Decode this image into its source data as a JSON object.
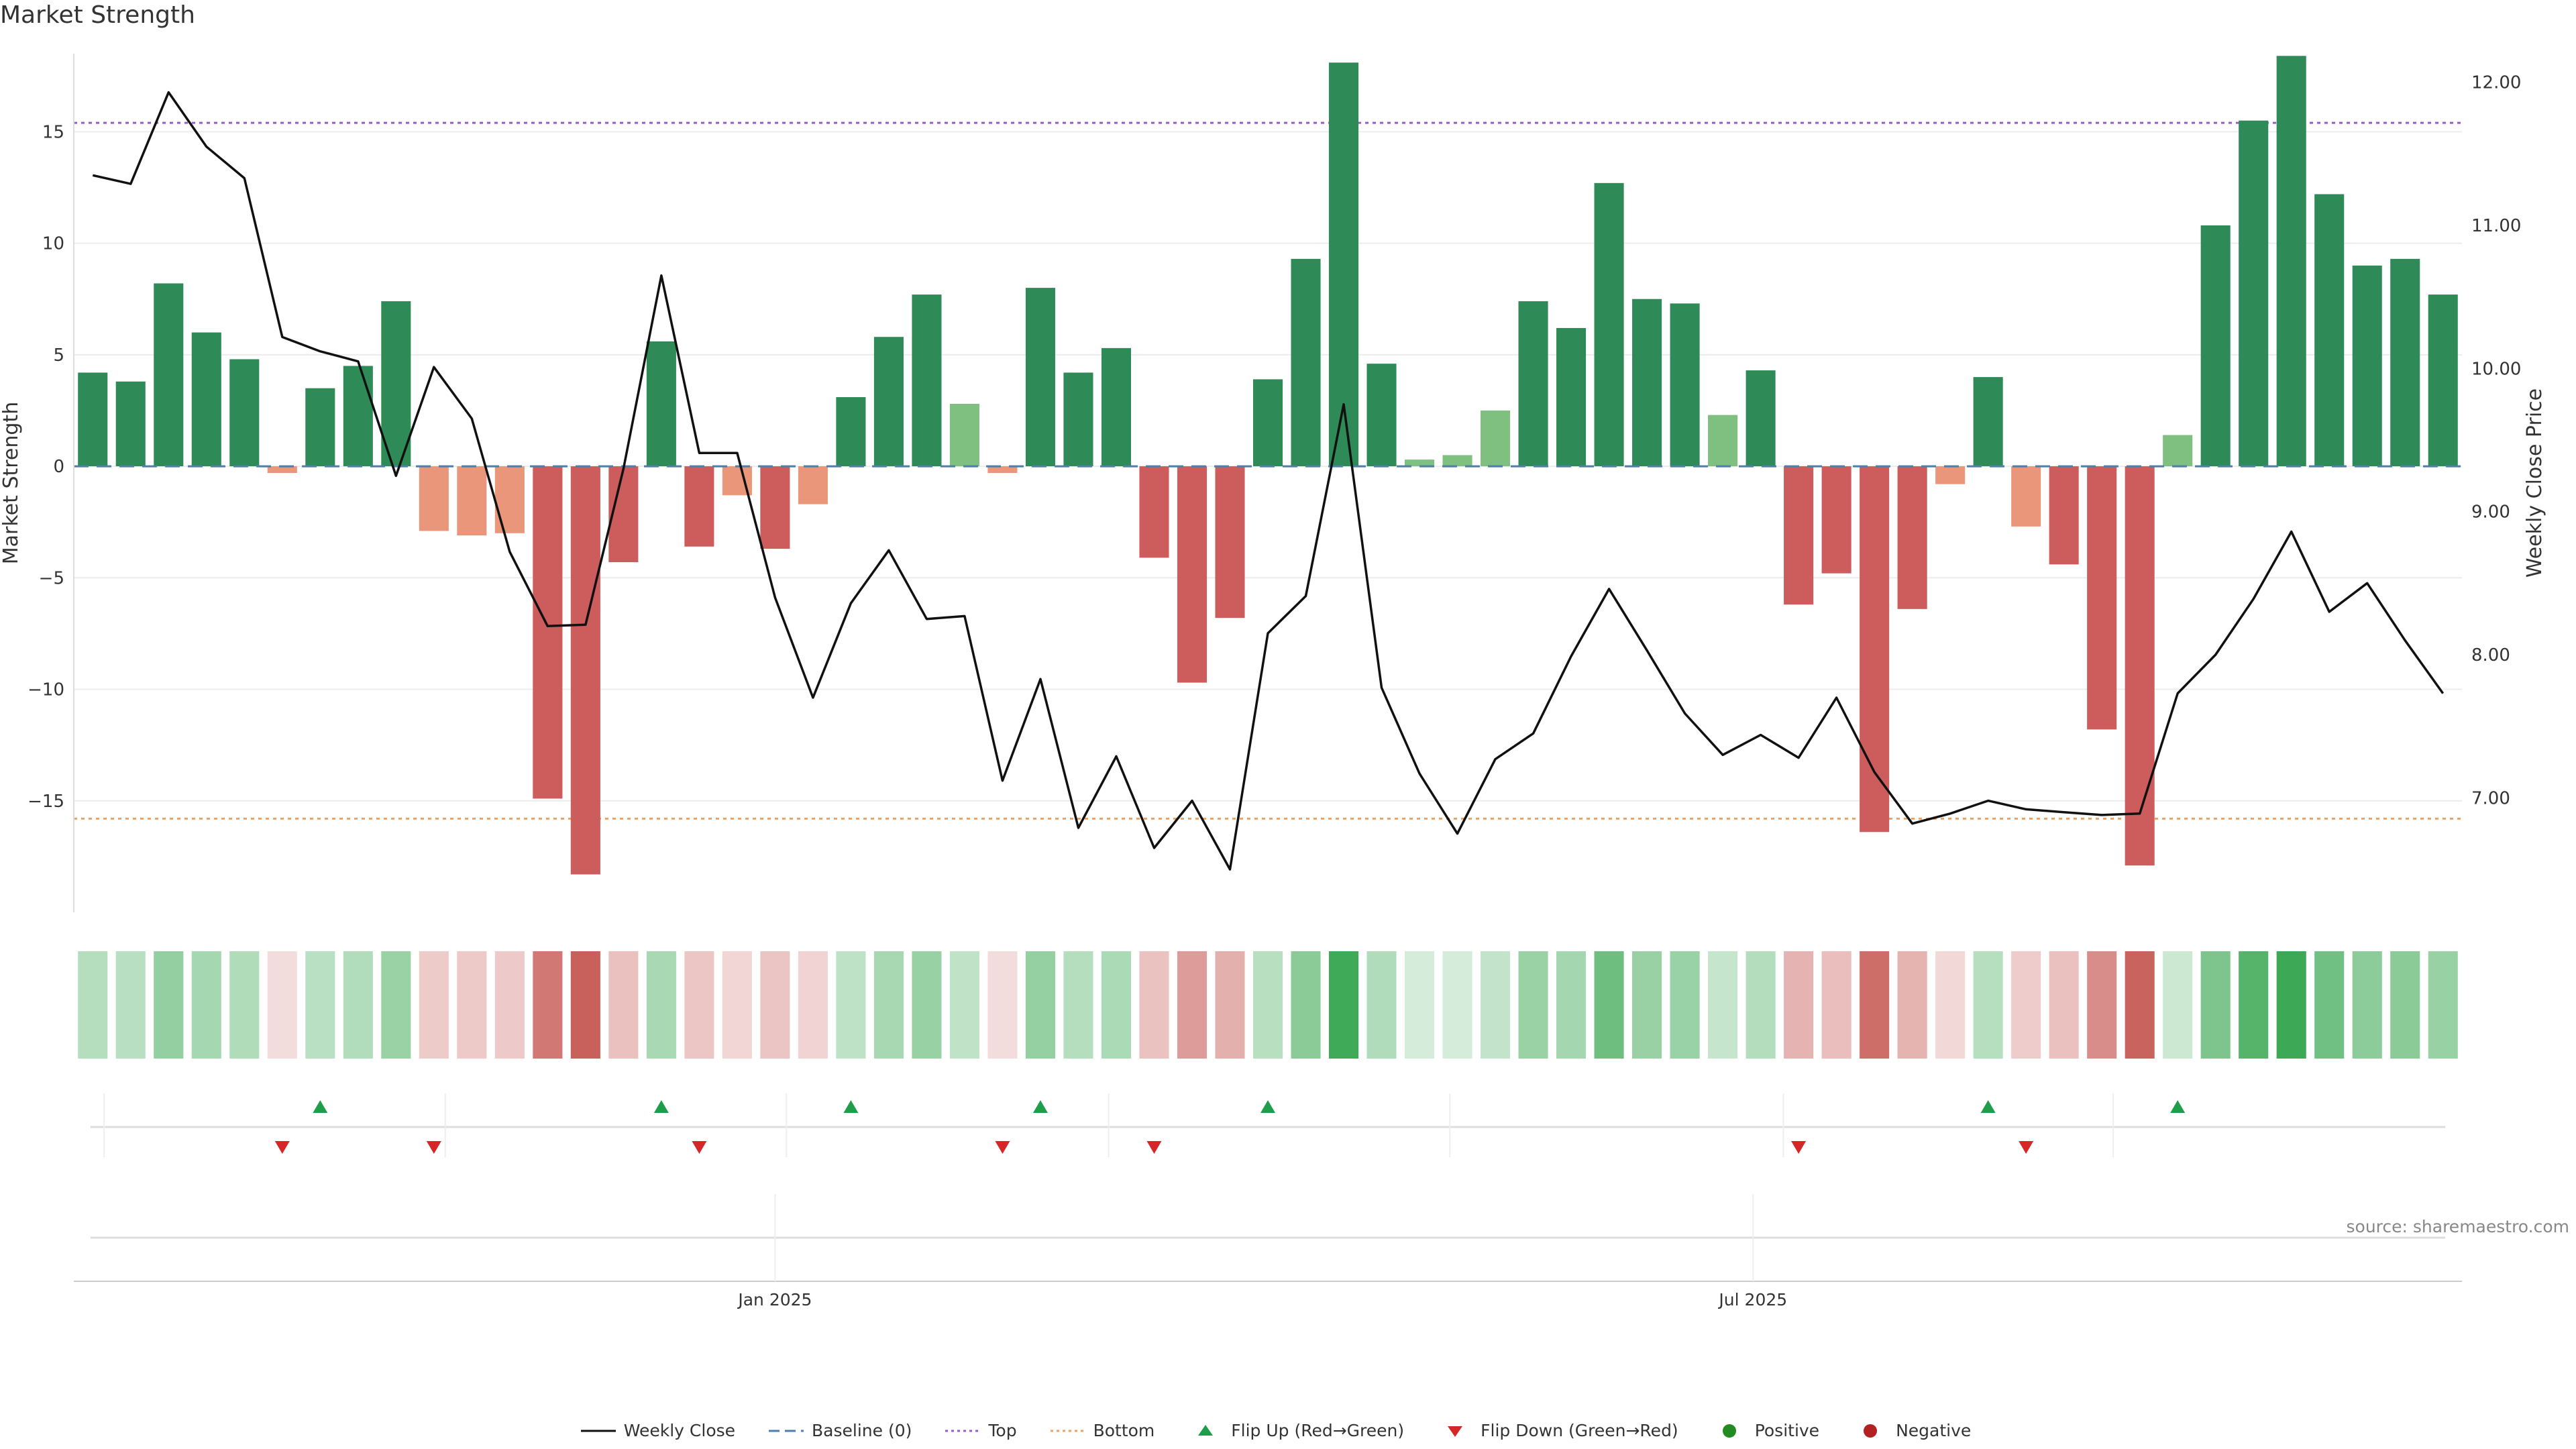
{
  "title": "Market Strength",
  "source": "source: sharemaestro.com",
  "colors": {
    "strong_pos": "#2e8b57",
    "weak_pos": "#7fbf7f",
    "strong_neg": "#cd5c5c",
    "weak_neg": "#e9967a",
    "price_line": "#111111",
    "baseline": "#4a7fb0",
    "top_line": "#9b59d0",
    "bottom_line": "#f0a060",
    "flip_up": "#1e9e4a",
    "flip_down": "#d62728"
  },
  "chart_data": {
    "type": "bar",
    "title": "Market Strength",
    "ylabel": "Market Strength",
    "y2label": "Weekly Close Price",
    "ylim": [
      -20,
      18.5
    ],
    "y2lim": [
      6.2,
      12.2
    ],
    "yticks": [
      -15,
      -10,
      -5,
      0,
      5,
      10,
      15
    ],
    "ytick_labels": [
      "−15",
      "−10",
      "−5",
      "0",
      "5",
      "10",
      "15"
    ],
    "y2ticks": [
      7,
      8,
      9,
      10,
      11,
      12
    ],
    "y2tick_labels": [
      "7.00",
      "8.00",
      "9.00",
      "10.00",
      "11.00",
      "12.00"
    ],
    "top_level": 15.4,
    "bottom_level": -15.8,
    "xtick_labels": [
      {
        "label": "Jan 2025",
        "index": 18.5
      },
      {
        "label": "Jul 2025",
        "index": 44.3
      }
    ],
    "strength": [
      4.2,
      3.8,
      8.2,
      6.0,
      4.8,
      -0.3,
      3.5,
      4.5,
      7.4,
      -2.9,
      -3.1,
      -3.0,
      -14.9,
      -18.3,
      -4.3,
      5.6,
      -3.6,
      -1.3,
      -3.7,
      -1.7,
      3.1,
      5.8,
      7.7,
      2.8,
      -0.3,
      8.0,
      4.2,
      5.3,
      -4.1,
      -9.7,
      -6.8,
      3.9,
      9.3,
      18.1,
      4.6,
      0.3,
      0.5,
      2.5,
      7.4,
      6.2,
      12.7,
      7.5,
      7.3,
      2.3,
      4.3,
      -6.2,
      -4.8,
      -16.4,
      -6.4,
      -0.8,
      4.0,
      -2.7,
      -4.4,
      -11.8,
      -17.9,
      1.4,
      10.8,
      15.5,
      18.4,
      12.2,
      9.0,
      9.3,
      7.7
    ],
    "weekly_close": [
      11.35,
      11.29,
      11.93,
      11.55,
      11.33,
      10.22,
      10.12,
      10.05,
      9.25,
      10.01,
      9.65,
      8.72,
      8.2,
      8.21,
      9.3,
      10.65,
      9.41,
      9.41,
      8.4,
      7.7,
      8.36,
      8.73,
      8.25,
      8.27,
      7.12,
      7.83,
      6.79,
      7.29,
      6.65,
      6.98,
      6.5,
      8.15,
      8.41,
      9.75,
      7.77,
      7.17,
      6.75,
      7.27,
      7.45,
      7.99,
      8.46,
      8.03,
      7.59,
      7.3,
      7.44,
      7.28,
      7.7,
      7.18,
      6.82,
      6.89,
      6.98,
      6.92,
      6.9,
      6.88,
      6.89,
      7.73,
      8.0,
      8.39,
      8.86,
      8.3,
      8.5,
      8.1,
      7.73
    ],
    "flip_up_indices": [
      6,
      15,
      20,
      25,
      31,
      50,
      55
    ],
    "flip_down_indices": [
      5,
      9,
      16,
      24,
      28,
      45,
      51
    ]
  },
  "legend": [
    {
      "key": "weekly_close",
      "label": "Weekly Close"
    },
    {
      "key": "baseline",
      "label": "Baseline (0)"
    },
    {
      "key": "top",
      "label": "Top"
    },
    {
      "key": "bottom",
      "label": "Bottom"
    },
    {
      "key": "flip_up",
      "label": "Flip Up (Red→Green)"
    },
    {
      "key": "flip_down",
      "label": "Flip Down (Green→Red)"
    },
    {
      "key": "positive",
      "label": "Positive"
    },
    {
      "key": "negative",
      "label": "Negative"
    }
  ]
}
